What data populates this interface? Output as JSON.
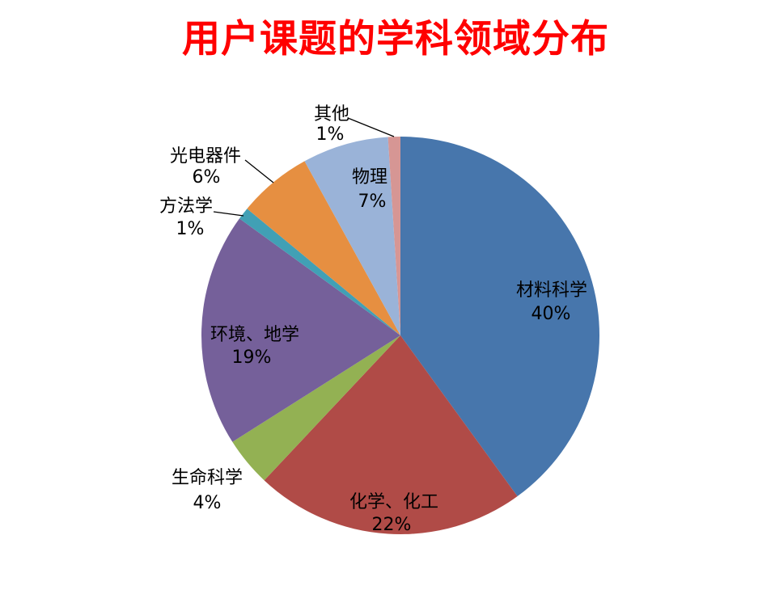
{
  "title": "用户课题的学科领域分布",
  "title_color": "#FF0000",
  "chart_data": {
    "type": "pie",
    "title": "用户课题的学科领域分布",
    "categories": [
      "材料科学",
      "化学、化工",
      "生命科学",
      "环境、地学",
      "方法学",
      "光电器件",
      "物理",
      "其他"
    ],
    "values": [
      40,
      22,
      4,
      19,
      1,
      6,
      7,
      1
    ],
    "unit": "%",
    "value_labels": [
      "40%",
      "22%",
      "4%",
      "19%",
      "1%",
      "6%",
      "7%",
      "1%"
    ],
    "colors": [
      "#4776AC",
      "#B04B47",
      "#93B153",
      "#75609A",
      "#41A0B5",
      "#E68F41",
      "#9AB3D8",
      "#D69694"
    ],
    "start_angle_deg": 0,
    "direction": "clockwise",
    "legend": "none",
    "grid": false,
    "label_style": "category name + percent, inside for large slices, outside with leader line for small slices",
    "leader_line_color": "#000000",
    "background": "#ffffff"
  }
}
